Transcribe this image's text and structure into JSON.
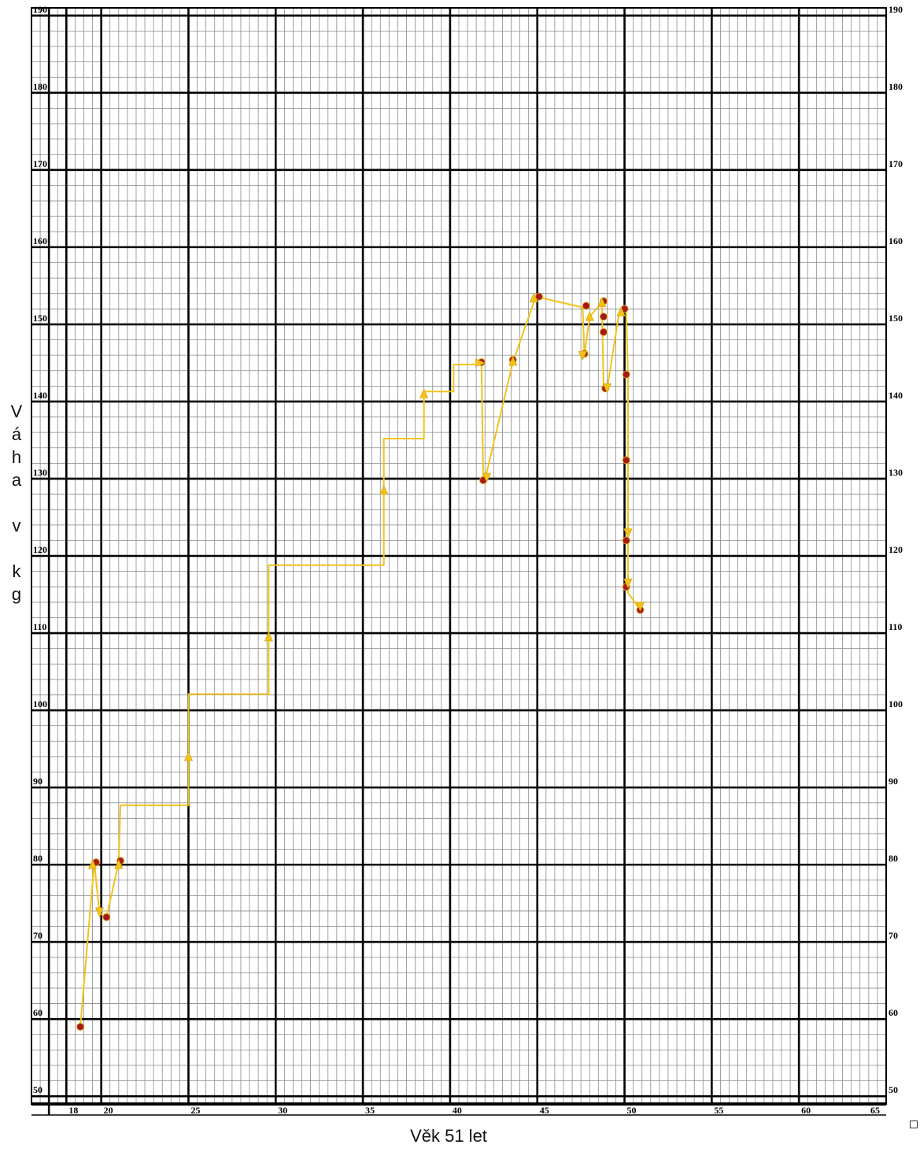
{
  "chart_data": {
    "type": "line",
    "xlabel": "Věk 51 let",
    "ylabel": "Váha v kg",
    "ylabel_letters": [
      "V",
      "á",
      "h",
      "a",
      "",
      "v",
      "",
      "k",
      "g"
    ],
    "xlim": [
      16,
      65
    ],
    "ylim": [
      49,
      191
    ],
    "x_ticks": [
      18,
      20,
      25,
      30,
      35,
      40,
      45,
      50,
      55,
      60,
      65
    ],
    "y_ticks": [
      50,
      60,
      70,
      80,
      90,
      100,
      110,
      120,
      130,
      140,
      150,
      160,
      170,
      180,
      190
    ],
    "grid": true,
    "line_color": "#f2c21a",
    "marker_color": "#a81818",
    "series": [
      {
        "x": [
          18.8,
          19.6,
          19.9,
          20.3,
          21.0,
          21.1,
          25.0,
          25.0,
          29.6,
          29.6,
          36.2,
          36.2,
          38.5,
          38.5,
          40.2,
          40.2,
          41.8,
          41.9,
          42.0,
          43.6,
          44.9,
          45.1,
          47.6,
          47.7,
          48.0,
          48.7,
          48.8,
          49.0,
          49.7,
          49.9,
          50.1,
          50.2,
          50.2,
          50.2,
          50.9
        ],
        "y": [
          59,
          80.3,
          73.7,
          73.2,
          80.3,
          87.7,
          87.7,
          102.1,
          102.1,
          118.8,
          118.8,
          135.2,
          135.2,
          141.3,
          141.3,
          144.8,
          144.8,
          129.9,
          129.9,
          145.1,
          153.5,
          153.5,
          152.2,
          146.0,
          151.0,
          152.8,
          141.6,
          141.6,
          151.6,
          152.0,
          151.6,
          143.4,
          121.8,
          115.2,
          113.0
        ]
      }
    ],
    "markers": {
      "x": [
        18.8,
        19.7,
        20.3,
        21.1,
        41.8,
        41.9,
        43.6,
        45.1,
        47.7,
        47.8,
        48.8,
        48.8,
        48.8,
        48.9,
        50.0,
        50.1,
        50.1,
        50.1,
        50.1,
        50.9
      ],
      "y": [
        59,
        80.3,
        73.2,
        80.5,
        145.1,
        129.8,
        145.4,
        153.6,
        146.2,
        152.4,
        153.0,
        151.0,
        149.0,
        141.7,
        152.0,
        143.5,
        132.4,
        122.0,
        116.0,
        113.0
      ]
    },
    "arrows": {
      "x": [
        19.5,
        19.9,
        21.0,
        25.0,
        29.6,
        36.2,
        38.5,
        41.7,
        42.1,
        43.6,
        44.8,
        47.6,
        48.0,
        48.7,
        49.0,
        49.8,
        50.2,
        50.2,
        50.9
      ],
      "y": [
        80.0,
        73.9,
        80.0,
        94.0,
        109.5,
        128.5,
        141.0,
        145.0,
        130.2,
        145.2,
        153.4,
        146.0,
        151.0,
        152.8,
        141.8,
        151.6,
        123.0,
        116.5,
        113.5
      ],
      "dir": [
        "up",
        "down",
        "up",
        "up",
        "up",
        "up",
        "up",
        "right",
        "down",
        "up",
        "up",
        "down",
        "up",
        "up",
        "down",
        "up",
        "down",
        "down",
        "down"
      ]
    }
  }
}
